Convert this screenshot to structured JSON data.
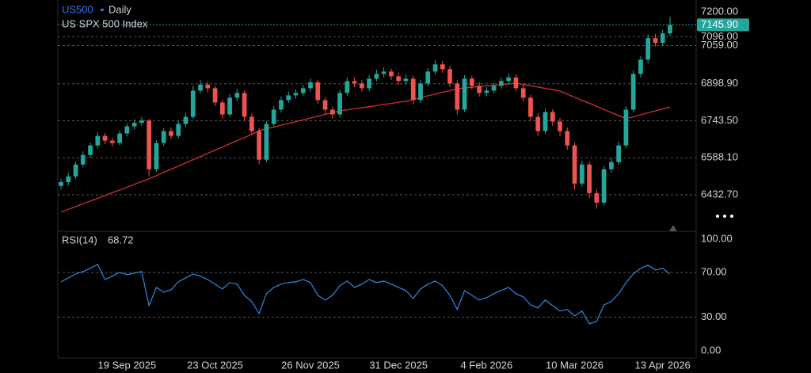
{
  "chart_data": [
    {
      "type": "candlestick",
      "title": "US500",
      "interval": "Daily",
      "subtitle": "US SPX 500 Index",
      "categories": [
        null,
        null,
        null,
        null,
        null,
        null,
        null,
        null,
        null,
        "19 Sep 2025",
        null,
        null,
        null,
        null,
        null,
        null,
        null,
        null,
        null,
        null,
        null,
        "23 Oct 2025",
        null,
        null,
        null,
        null,
        null,
        null,
        null,
        null,
        null,
        null,
        null,
        null,
        "26 Nov 2025",
        null,
        null,
        null,
        null,
        null,
        null,
        null,
        null,
        null,
        null,
        null,
        "31 Dec 2025",
        null,
        null,
        null,
        null,
        null,
        null,
        null,
        null,
        null,
        null,
        null,
        "4 Feb 2026",
        null,
        null,
        null,
        null,
        null,
        null,
        null,
        null,
        null,
        null,
        null,
        "10 Mar 2026",
        null,
        null,
        null,
        null,
        null,
        null,
        null,
        null,
        null,
        null,
        null,
        "13 Apr 2026",
        null
      ],
      "open": [
        6470,
        6486,
        6510,
        6560,
        6600,
        6640,
        6680,
        6660,
        6650,
        6690,
        6720,
        6735,
        6745,
        6540,
        6650,
        6700,
        6680,
        6730,
        6760,
        6870,
        6895,
        6880,
        6820,
        6770,
        6840,
        6860,
        6760,
        6700,
        6580,
        6730,
        6790,
        6830,
        6850,
        6860,
        6880,
        6905,
        6830,
        6790,
        6770,
        6860,
        6910,
        6900,
        6880,
        6920,
        6940,
        6950,
        6930,
        6910,
        6920,
        6830,
        6900,
        6950,
        6980,
        6960,
        6900,
        6790,
        6920,
        6890,
        6860,
        6870,
        6890,
        6910,
        6925,
        6880,
        6840,
        6760,
        6700,
        6780,
        6740,
        6700,
        6640,
        6480,
        6560,
        6440,
        6400,
        6540,
        6570,
        6640,
        6790,
        6940,
        7000,
        7090,
        7070,
        7110
      ],
      "high": [
        6500,
        6525,
        6572,
        6615,
        6652,
        6695,
        6692,
        6672,
        6702,
        6733,
        6750,
        6760,
        6752,
        6662,
        6712,
        6715,
        6742,
        6775,
        6890,
        6915,
        6908,
        6890,
        6832,
        6855,
        6878,
        6872,
        6772,
        6712,
        6742,
        6805,
        6845,
        6865,
        6875,
        6895,
        6922,
        6915,
        6842,
        6802,
        6872,
        6925,
        6925,
        6915,
        6935,
        6958,
        6968,
        6962,
        6945,
        6938,
        6932,
        6915,
        6965,
        6998,
        6995,
        6975,
        6915,
        6935,
        6932,
        6905,
        6885,
        6905,
        6925,
        6942,
        6938,
        6895,
        6852,
        6775,
        6795,
        6792,
        6755,
        6715,
        6652,
        6575,
        6572,
        6455,
        6555,
        6588,
        6655,
        6805,
        6955,
        7015,
        7105,
        7108,
        7125,
        7180
      ],
      "low": [
        6455,
        6472,
        6498,
        6548,
        6588,
        6628,
        6645,
        6636,
        6640,
        6678,
        6706,
        6722,
        6510,
        6530,
        6638,
        6665,
        6670,
        6718,
        6752,
        6858,
        6862,
        6805,
        6752,
        6760,
        6825,
        6745,
        6685,
        6560,
        6570,
        6720,
        6778,
        6818,
        6836,
        6848,
        6866,
        6815,
        6772,
        6752,
        6758,
        6848,
        6885,
        6866,
        6868,
        6908,
        6926,
        6915,
        6895,
        6896,
        6812,
        6818,
        6888,
        6938,
        6945,
        6885,
        6770,
        6780,
        6875,
        6845,
        6846,
        6858,
        6878,
        6896,
        6866,
        6825,
        6742,
        6680,
        6688,
        6722,
        6680,
        6622,
        6455,
        6468,
        6420,
        6375,
        6388,
        6525,
        6558,
        6628,
        6778,
        6925,
        6985,
        7055,
        7058,
        7098
      ],
      "close": [
        6486,
        6510,
        6560,
        6600,
        6640,
        6680,
        6660,
        6650,
        6690,
        6720,
        6735,
        6745,
        6540,
        6650,
        6700,
        6680,
        6730,
        6760,
        6870,
        6895,
        6880,
        6820,
        6770,
        6840,
        6860,
        6760,
        6700,
        6580,
        6730,
        6790,
        6830,
        6850,
        6860,
        6880,
        6905,
        6830,
        6790,
        6770,
        6860,
        6910,
        6900,
        6880,
        6920,
        6940,
        6950,
        6930,
        6910,
        6920,
        6830,
        6900,
        6950,
        6980,
        6960,
        6900,
        6790,
        6920,
        6890,
        6860,
        6870,
        6890,
        6910,
        6925,
        6880,
        6840,
        6760,
        6700,
        6780,
        6740,
        6700,
        6640,
        6480,
        6560,
        6440,
        6400,
        6540,
        6570,
        6640,
        6790,
        6940,
        7000,
        7090,
        7070,
        7110,
        7145.9
      ],
      "up_color": "#26a69a",
      "down_color": "#ef5350",
      "series": [
        {
          "color": "#d32f2f",
          "values": [
            6360,
            6372,
            6383,
            6395,
            6407,
            6418,
            6430,
            6442,
            6453,
            6465,
            6477,
            6488,
            6500,
            6513,
            6527,
            6540,
            6553,
            6567,
            6580,
            6593,
            6607,
            6620,
            6633,
            6647,
            6660,
            6673,
            6687,
            6702,
            6710,
            6717,
            6725,
            6732,
            6740,
            6747,
            6755,
            6762,
            6770,
            6777,
            6785,
            6789,
            6794,
            6798,
            6803,
            6807,
            6812,
            6816,
            6821,
            6825,
            6833,
            6840,
            6848,
            6855,
            6863,
            6870,
            6878,
            6881,
            6884,
            6887,
            6890,
            6892,
            6895,
            6898,
            6901,
            6896,
            6890,
            6885,
            6879,
            6874,
            6868,
            6855,
            6842,
            6829,
            6817,
            6804,
            6791,
            6778,
            6765,
            6752,
            6760,
            6768,
            6777,
            6785,
            6793,
            6801
          ]
        }
      ],
      "last_price": {
        "value": 7145.9,
        "label": "7145.90"
      },
      "last_price_color": "#26a69a",
      "ylim": [
        6280,
        7250
      ],
      "yticks": [
        {
          "value": 7200,
          "label": "7200.00"
        },
        {
          "value": 7096,
          "label": "7096.00"
        },
        {
          "value": 7059,
          "label": "7059.00"
        },
        {
          "value": 6898.9,
          "label": "6898.90"
        },
        {
          "value": 6743.5,
          "label": "6743.50"
        },
        {
          "value": 6588.1,
          "label": "6588.10"
        },
        {
          "value": 6432.7,
          "label": "6432.70"
        }
      ],
      "grid": true
    },
    {
      "type": "line",
      "title": "RSI(14)",
      "color": "#2f8ae0",
      "values": [
        61.7,
        65.2,
        68.8,
        70.9,
        73.8,
        77.3,
        63.8,
        66.7,
        70.2,
        68.1,
        69.5,
        70.9,
        40.4,
        56.7,
        52.5,
        54.6,
        61.7,
        65.2,
        68.8,
        66.7,
        63.8,
        59.6,
        55.3,
        61.0,
        59.6,
        49.6,
        44.0,
        33.3,
        51.1,
        56.7,
        59.6,
        61.0,
        61.7,
        63.8,
        61.0,
        49.6,
        45.4,
        49.6,
        58.2,
        62.4,
        56.7,
        59.6,
        63.8,
        61.0,
        62.4,
        59.6,
        56.7,
        53.9,
        46.8,
        55.3,
        59.6,
        62.4,
        58.2,
        49.6,
        36.9,
        53.9,
        49.6,
        45.4,
        47.5,
        51.1,
        53.9,
        56.7,
        51.1,
        48.2,
        41.1,
        38.3,
        45.4,
        40.4,
        35.5,
        36.9,
        31.2,
        35.5,
        24.1,
        26.2,
        41.1,
        44.0,
        51.1,
        61.0,
        68.8,
        73.8,
        76.6,
        72.3,
        73.8,
        68.72
      ],
      "ylim": [
        -6.5,
        107
      ],
      "yticks": [
        {
          "value": 100,
          "label": "100.00"
        },
        {
          "value": 70,
          "label": "70.00"
        },
        {
          "value": 30,
          "label": "30.00"
        },
        {
          "value": 0,
          "label": "0.00"
        }
      ],
      "grid_ticks": [
        70,
        30
      ]
    }
  ]
}
